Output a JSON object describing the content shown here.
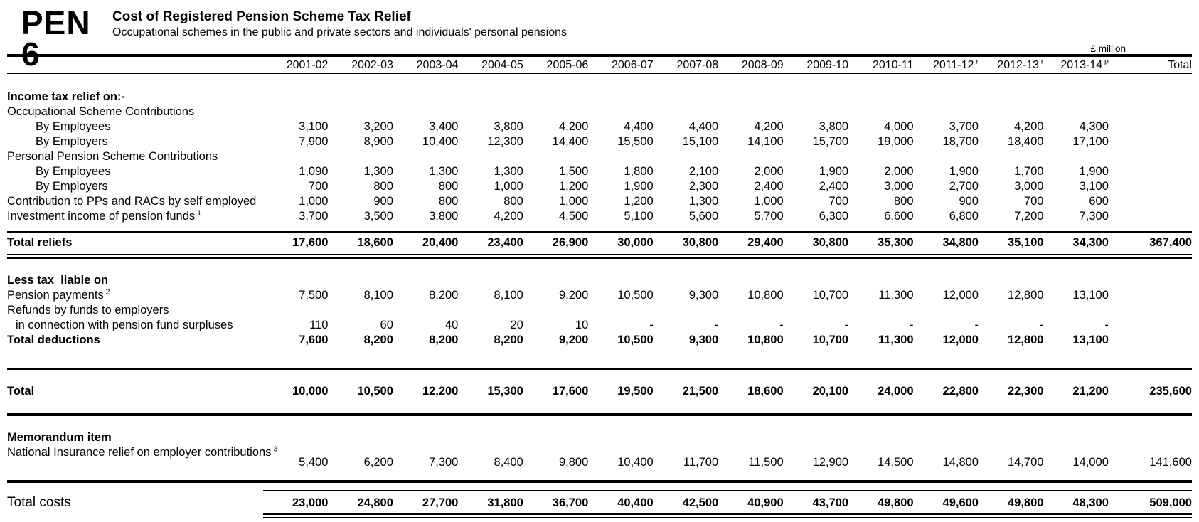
{
  "header": {
    "code": "PEN 6",
    "title": "Cost of Registered Pension Scheme Tax Relief",
    "subtitle": "Occupational schemes in the public and private sectors and individuals' personal pensions",
    "unit_label": "£ million"
  },
  "table": {
    "columns": [
      {
        "label": "2001-02",
        "sup": ""
      },
      {
        "label": "2002-03",
        "sup": ""
      },
      {
        "label": "2003-04",
        "sup": ""
      },
      {
        "label": "2004-05",
        "sup": ""
      },
      {
        "label": "2005-06",
        "sup": ""
      },
      {
        "label": "2006-07",
        "sup": ""
      },
      {
        "label": "2007-08",
        "sup": ""
      },
      {
        "label": "2008-09",
        "sup": ""
      },
      {
        "label": "2009-10",
        "sup": ""
      },
      {
        "label": "2010-11",
        "sup": ""
      },
      {
        "label": "2011-12",
        "sup": "r"
      },
      {
        "label": "2012-13",
        "sup": "r"
      },
      {
        "label": "2013-14",
        "sup": "p"
      },
      {
        "label": "Total",
        "sup": ""
      }
    ],
    "rows": [
      {
        "kind": "section",
        "label": "Income tax relief on:-"
      },
      {
        "kind": "group",
        "label": "Occupational Scheme Contributions"
      },
      {
        "kind": "item",
        "indent": 1,
        "label": "By Employees",
        "values": [
          "3,100",
          "3,200",
          "3,400",
          "3,800",
          "4,200",
          "4,400",
          "4,400",
          "4,200",
          "3,800",
          "4,000",
          "3,700",
          "4,200",
          "4,300",
          ""
        ]
      },
      {
        "kind": "item",
        "indent": 1,
        "label": "By Employers",
        "values": [
          "7,900",
          "8,900",
          "10,400",
          "12,300",
          "14,400",
          "15,500",
          "15,100",
          "14,100",
          "15,700",
          "19,000",
          "18,700",
          "18,400",
          "17,100",
          ""
        ]
      },
      {
        "kind": "group",
        "label": "Personal Pension Scheme Contributions"
      },
      {
        "kind": "item",
        "indent": 1,
        "label": "By Employees",
        "values": [
          "1,090",
          "1,300",
          "1,300",
          "1,300",
          "1,500",
          "1,800",
          "2,100",
          "2,000",
          "1,900",
          "2,000",
          "1,900",
          "1,700",
          "1,900",
          ""
        ]
      },
      {
        "kind": "item",
        "indent": 1,
        "label": "By Employers",
        "values": [
          "700",
          "800",
          "800",
          "1,000",
          "1,200",
          "1,900",
          "2,300",
          "2,400",
          "2,400",
          "3,000",
          "2,700",
          "3,000",
          "3,100",
          ""
        ]
      },
      {
        "kind": "item",
        "label": "Contribution to PPs and RACs by self employed",
        "values": [
          "1,000",
          "900",
          "800",
          "800",
          "1,000",
          "1,200",
          "1,300",
          "1,000",
          "700",
          "800",
          "900",
          "700",
          "600",
          ""
        ]
      },
      {
        "kind": "item",
        "label": "Investment income of pension funds",
        "sup": "1",
        "values": [
          "3,700",
          "3,500",
          "3,800",
          "4,200",
          "4,500",
          "5,100",
          "5,600",
          "5,700",
          "6,300",
          "6,600",
          "6,800",
          "7,200",
          "7,300",
          ""
        ]
      },
      {
        "kind": "spacer-sm"
      },
      {
        "kind": "total-band",
        "label": "Total reliefs",
        "values": [
          "17,600",
          "18,600",
          "20,400",
          "23,400",
          "26,900",
          "30,000",
          "30,800",
          "29,400",
          "30,800",
          "35,300",
          "34,800",
          "35,100",
          "34,300",
          "367,400"
        ]
      },
      {
        "kind": "rule-double"
      },
      {
        "kind": "spacer-md"
      },
      {
        "kind": "section",
        "label": "Less tax  liable on"
      },
      {
        "kind": "item",
        "label": "Pension payments",
        "sup": "2",
        "values": [
          "7,500",
          "8,100",
          "8,200",
          "8,100",
          "9,200",
          "10,500",
          "9,300",
          "10,800",
          "10,700",
          "11,300",
          "12,000",
          "12,800",
          "13,100",
          ""
        ]
      },
      {
        "kind": "group",
        "label": "Refunds by funds to employers"
      },
      {
        "kind": "item",
        "indent": 2,
        "label": "in connection with pension fund surpluses",
        "values": [
          "110",
          "60",
          "40",
          "20",
          "10",
          "-",
          "-",
          "-",
          "-",
          "-",
          "-",
          "-",
          "-",
          ""
        ]
      },
      {
        "kind": "item-bold",
        "label": "Total deductions",
        "values": [
          "7,600",
          "8,200",
          "8,200",
          "8,200",
          "9,200",
          "10,500",
          "9,300",
          "10,800",
          "10,700",
          "11,300",
          "12,000",
          "12,800",
          "13,100",
          ""
        ]
      },
      {
        "kind": "spacer-lg"
      },
      {
        "kind": "rule-md"
      },
      {
        "kind": "spacer-md"
      },
      {
        "kind": "item-bold",
        "label": "Total",
        "values": [
          "10,000",
          "10,500",
          "12,200",
          "15,300",
          "17,600",
          "19,500",
          "21,500",
          "18,600",
          "20,100",
          "24,000",
          "22,800",
          "22,300",
          "21,200",
          "235,600"
        ]
      },
      {
        "kind": "spacer-md"
      },
      {
        "kind": "rule-thick"
      },
      {
        "kind": "spacer-md"
      },
      {
        "kind": "section",
        "label": "Memorandum item"
      },
      {
        "kind": "item",
        "drop": true,
        "label": "National Insurance relief on employer contributions",
        "sup": "3",
        "values": [
          "5,400",
          "6,200",
          "7,300",
          "8,400",
          "9,800",
          "10,400",
          "11,700",
          "11,500",
          "12,900",
          "14,500",
          "14,800",
          "14,700",
          "14,000",
          "141,600"
        ]
      },
      {
        "kind": "spacer-lg"
      },
      {
        "kind": "rule-thick"
      },
      {
        "kind": "spacer-sm"
      },
      {
        "kind": "total-costs",
        "label": "Total costs",
        "values": [
          "23,000",
          "24,800",
          "27,700",
          "31,800",
          "36,700",
          "40,400",
          "42,500",
          "40,900",
          "43,700",
          "49,800",
          "49,600",
          "49,800",
          "48,300",
          "509,000"
        ]
      }
    ]
  }
}
